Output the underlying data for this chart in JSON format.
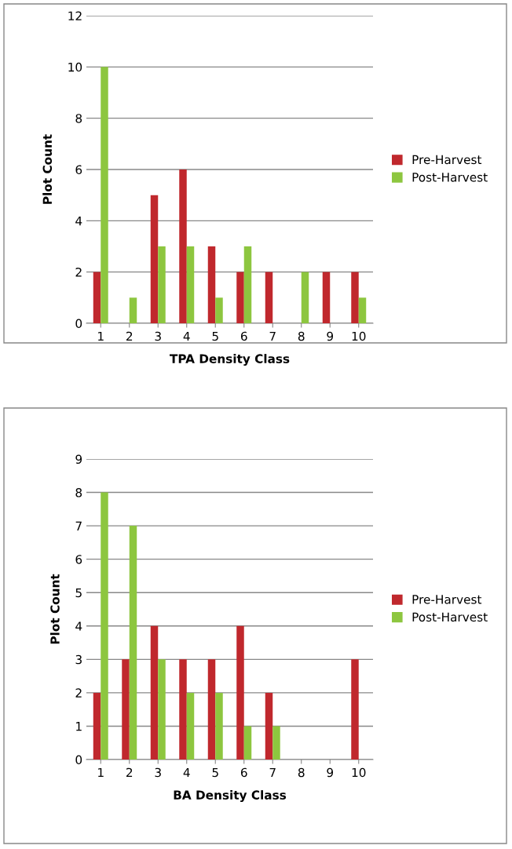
{
  "chart_data": [
    {
      "type": "bar",
      "xlabel": "TPA Density Class",
      "ylabel": "Plot Count",
      "categories": [
        "1",
        "2",
        "3",
        "4",
        "5",
        "6",
        "7",
        "8",
        "9",
        "10"
      ],
      "series": [
        {
          "name": "Pre-Harvest",
          "color": "#c0282d",
          "values": [
            2,
            0,
            5,
            6,
            3,
            2,
            2,
            0,
            2,
            2
          ]
        },
        {
          "name": "Post-Harvest",
          "color": "#8dc63f",
          "values": [
            10,
            1,
            3,
            3,
            1,
            3,
            0,
            2,
            0,
            1
          ]
        }
      ],
      "ylim": [
        0,
        12
      ],
      "yticks": [
        0,
        2,
        4,
        6,
        8,
        10,
        12
      ],
      "grid": "y",
      "legend": "right"
    },
    {
      "type": "bar",
      "xlabel": "BA Density Class",
      "ylabel": "Plot Count",
      "categories": [
        "1",
        "2",
        "3",
        "4",
        "5",
        "6",
        "7",
        "8",
        "9",
        "10"
      ],
      "series": [
        {
          "name": "Pre-Harvest",
          "color": "#c0282d",
          "values": [
            2,
            3,
            4,
            3,
            3,
            4,
            2,
            0,
            0,
            3
          ]
        },
        {
          "name": "Post-Harvest",
          "color": "#8dc63f",
          "values": [
            8,
            7,
            3,
            2,
            2,
            1,
            1,
            0,
            0,
            0
          ]
        }
      ],
      "ylim": [
        0,
        9
      ],
      "yticks": [
        0,
        1,
        2,
        3,
        4,
        5,
        6,
        7,
        8,
        9
      ],
      "grid": "y",
      "legend": "right"
    }
  ]
}
